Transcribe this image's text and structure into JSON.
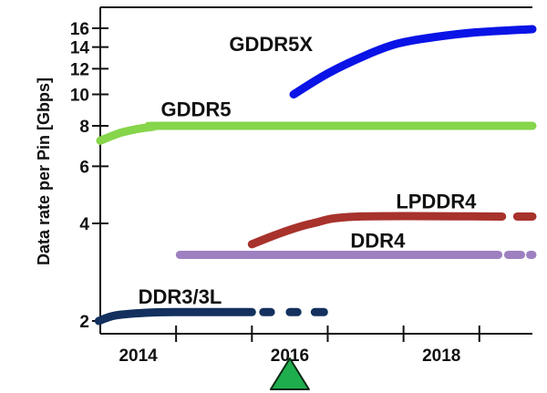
{
  "chart_data": {
    "type": "line",
    "title": "",
    "xlabel": "",
    "ylabel": "Data rate per Pin [Gbps]",
    "yscale": "log",
    "xlim": [
      2013.5,
      2019.2
    ],
    "ylim": [
      1.95,
      17.5
    ],
    "x_ticks": [
      2014.5,
      2015.5,
      2016.5,
      2017.5,
      2018.5
    ],
    "x_tick_labels": [
      {
        "value": 2014,
        "label": "2014"
      },
      {
        "value": 2016,
        "label": "2016"
      },
      {
        "value": 2018,
        "label": "2018"
      }
    ],
    "y_ticks": [
      {
        "value": 2,
        "label": "2"
      },
      {
        "value": 4,
        "label": "4"
      },
      {
        "value": 6,
        "label": "6"
      },
      {
        "value": 8,
        "label": "8"
      },
      {
        "value": 10,
        "label": "10"
      },
      {
        "value": 12,
        "label": "12"
      },
      {
        "value": 14,
        "label": "14"
      },
      {
        "value": 16,
        "label": "16"
      }
    ],
    "grid": false,
    "legend": "none",
    "series": [
      {
        "name": "GDDR5X",
        "color": "#0a14e6",
        "label_at": [
          2015.2,
          13.6
        ],
        "solid": [
          [
            2016.05,
            10.0
          ],
          [
            2016.5,
            11.6
          ],
          [
            2017.0,
            13.2
          ],
          [
            2017.4,
            14.3
          ],
          [
            2017.8,
            14.9
          ],
          [
            2018.4,
            15.5
          ],
          [
            2019.2,
            15.9
          ]
        ],
        "dashed": []
      },
      {
        "name": "GDDR5",
        "color": "#86d54a",
        "label_at": [
          2014.3,
          8.55
        ],
        "solid": [
          [
            2013.5,
            7.2
          ],
          [
            2013.8,
            7.65
          ],
          [
            2014.2,
            7.95
          ],
          [
            2014.6,
            8.0
          ],
          [
            2019.2,
            8.0
          ]
        ],
        "dashed": []
      },
      {
        "name": "LPDDR4",
        "color": "#a8322c",
        "label_at": [
          2017.4,
          4.45
        ],
        "solid": [
          [
            2015.5,
            3.45
          ],
          [
            2015.9,
            3.75
          ],
          [
            2016.3,
            4.0
          ],
          [
            2016.9,
            4.2
          ],
          [
            2018.8,
            4.2
          ]
        ],
        "dashed": [
          [
            2019.0,
            2019.2
          ]
        ]
      },
      {
        "name": "DDR4",
        "color": "#9e80c0",
        "label_at": [
          2016.8,
          3.37
        ],
        "solid": [
          [
            2014.55,
            3.2
          ],
          [
            2018.75,
            3.2
          ]
        ],
        "dashed": [
          [
            2018.88,
            2019.05
          ],
          [
            2019.17,
            2019.2
          ]
        ]
      },
      {
        "name": "DDR3/3L",
        "color": "#13305e",
        "label_at": [
          2014.0,
          2.26
        ],
        "solid": [
          [
            2013.48,
            2.0
          ],
          [
            2013.7,
            2.08
          ],
          [
            2014.1,
            2.12
          ],
          [
            2014.5,
            2.13
          ],
          [
            2015.5,
            2.13
          ]
        ],
        "dashed": [
          [
            2015.65,
            2.13,
            2015.75
          ],
          [
            2016.0,
            2.13,
            2016.1
          ],
          [
            2016.33,
            2.13,
            2016.45
          ]
        ]
      }
    ],
    "annotations": [
      {
        "type": "marker",
        "shape": "triangle",
        "x": 2016,
        "color": "#1fae4e",
        "description_label": ""
      }
    ]
  }
}
